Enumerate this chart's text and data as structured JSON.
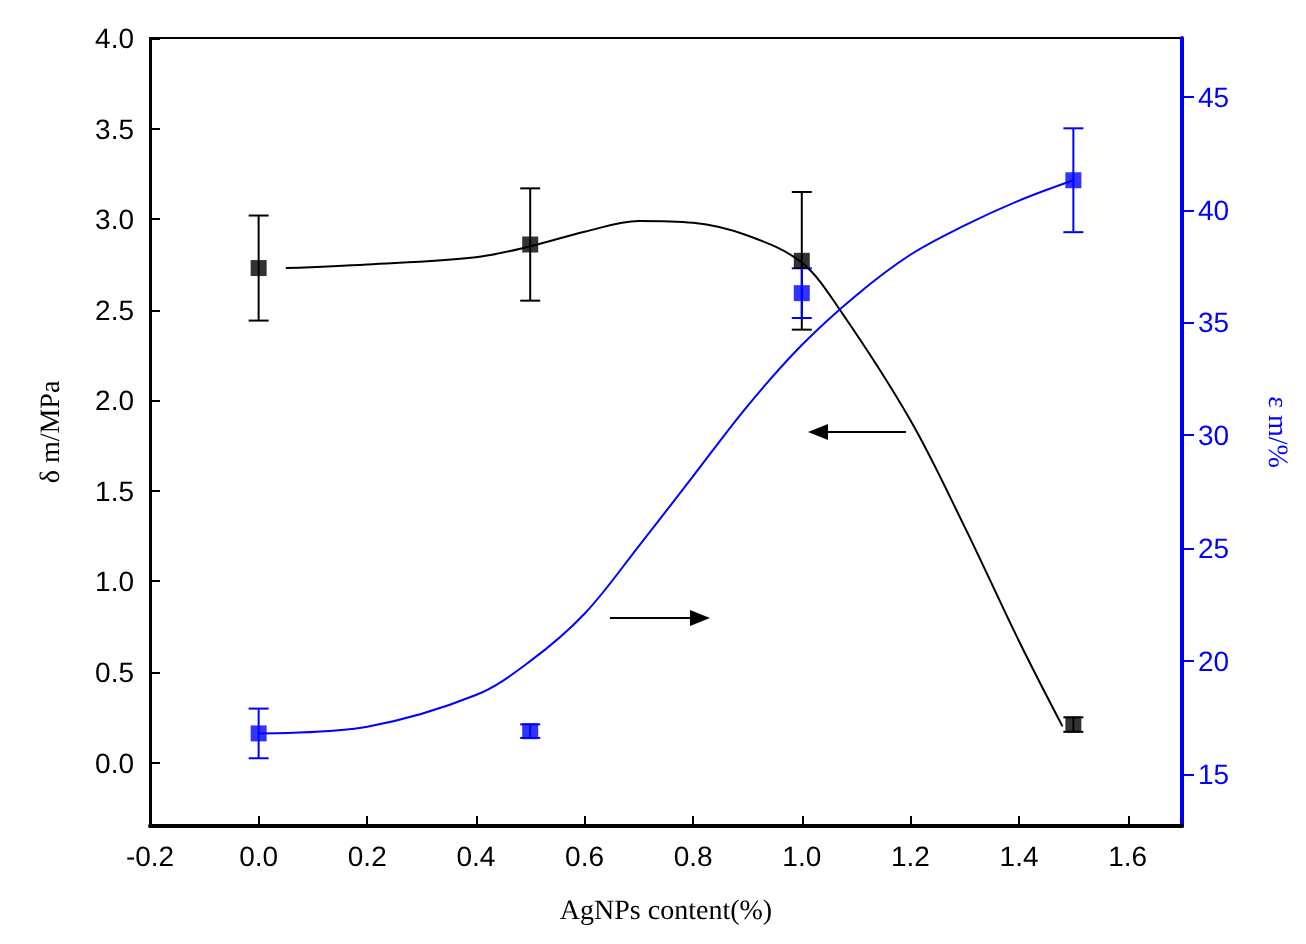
{
  "chart_data": {
    "type": "scatter",
    "xlabel": "AgNPs content(%)",
    "ylabel": "δ m/MPa",
    "y2label": "ε m/%",
    "xlim": [
      -0.2,
      1.7
    ],
    "xticks": [
      {
        "value": -0.2,
        "label": "-0.2"
      },
      {
        "value": 0,
        "label": "0.0"
      },
      {
        "value": 0.2,
        "label": "0.2"
      },
      {
        "value": 0.4,
        "label": "0.4"
      },
      {
        "value": 0.6,
        "label": "0.6"
      },
      {
        "value": 0.8,
        "label": "0.8"
      },
      {
        "value": 1,
        "label": "1.0"
      },
      {
        "value": 1.2,
        "label": "1.2"
      },
      {
        "value": 1.4,
        "label": "1.4"
      },
      {
        "value": 1.6,
        "label": "1.6"
      }
    ],
    "ylim": [
      -0.35,
      4.0
    ],
    "yticks": [
      {
        "value": 0,
        "label": "0.0"
      },
      {
        "value": 0.5,
        "label": "0.5"
      },
      {
        "value": 1,
        "label": "1.0"
      },
      {
        "value": 1.5,
        "label": "1.5"
      },
      {
        "value": 2,
        "label": "2.0"
      },
      {
        "value": 2.5,
        "label": "2.5"
      },
      {
        "value": 3,
        "label": "3.0"
      },
      {
        "value": 3.5,
        "label": "3.5"
      },
      {
        "value": 4,
        "label": "4.0"
      }
    ],
    "y2lim": [
      12.7,
      47.6
    ],
    "y2ticks": [
      15,
      20,
      25,
      30,
      35,
      40,
      45
    ],
    "grid": false,
    "series": [
      {
        "color": "#000000",
        "marker": "square",
        "x": [
          0,
          0.5,
          1,
          1.5
        ],
        "values": [
          2.73,
          2.86,
          2.77,
          0.21
        ],
        "errors": [
          0.29,
          0.31,
          0.38,
          0.04
        ]
      },
      {
        "type": "line",
        "color": "#000000",
        "marker": "none",
        "x": [
          0.05,
          0.2,
          0.4,
          0.5,
          0.6,
          0.7,
          0.8,
          0.9,
          1.0,
          1.07,
          1.2,
          1.3,
          1.4,
          1.48
        ],
        "values": [
          2.73,
          2.75,
          2.79,
          2.85,
          2.93,
          2.99,
          2.98,
          2.91,
          2.76,
          2.5,
          1.89,
          1.3,
          0.67,
          0.2
        ]
      },
      {
        "color": "#0000ff",
        "marker": "square",
        "axis": "y2",
        "x": [
          0,
          0.5,
          1,
          1.5
        ],
        "values": [
          16.8,
          16.9,
          36.3,
          41.3
        ],
        "errors": [
          1.1,
          0.3,
          1.1,
          2.3
        ]
      },
      {
        "type": "line",
        "color": "#0000ff",
        "marker": "none",
        "axis": "y2",
        "x": [
          0,
          0.2,
          0.4,
          0.5,
          0.6,
          0.7,
          0.8,
          0.9,
          1.0,
          1.1,
          1.2,
          1.3,
          1.4,
          1.5
        ],
        "values": [
          16.8,
          17.1,
          18.5,
          20.0,
          22.1,
          25.1,
          28.2,
          31.3,
          34.0,
          36.2,
          38.0,
          39.3,
          40.4,
          41.3
        ]
      }
    ]
  }
}
